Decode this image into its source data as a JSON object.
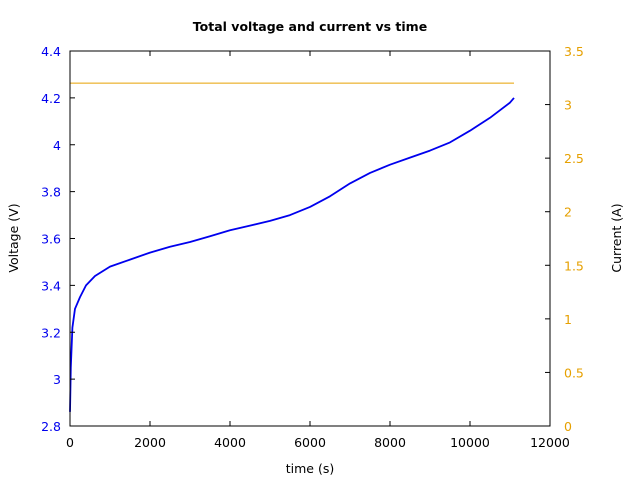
{
  "chart_data": {
    "type": "line",
    "title": "Total voltage and current vs time",
    "xlabel": "time (s)",
    "ylabel": "Voltage (V)",
    "y2label": "Current (A)",
    "xlim": [
      0,
      12000
    ],
    "ylim": [
      2.8,
      4.4
    ],
    "y2lim": [
      0,
      3.5
    ],
    "x_ticks": [
      "0",
      "2000",
      "4000",
      "6000",
      "8000",
      "10000",
      "12000"
    ],
    "y_ticks": [
      "2.8",
      "3",
      "3.2",
      "3.4",
      "3.6",
      "3.8",
      "4",
      "4.2",
      "4.4"
    ],
    "y2_ticks": [
      "0",
      "0.5",
      "1",
      "1.5",
      "2",
      "2.5",
      "3",
      "3.5"
    ],
    "grid": false,
    "legend": null,
    "colors": {
      "voltage": "#0000ee",
      "current": "#e6a000",
      "left_axis_ticks": "#0000ee",
      "right_axis_ticks": "#e6a000"
    },
    "series": [
      {
        "name": "Voltage (V)",
        "axis": "left",
        "x": [
          0,
          20,
          60,
          125,
          250,
          400,
          625,
          1000,
          1500,
          2000,
          2500,
          3000,
          3500,
          4000,
          4500,
          5000,
          5500,
          6000,
          6500,
          7000,
          7500,
          8000,
          8500,
          9000,
          9500,
          10000,
          10500,
          11000,
          11100
        ],
        "values": [
          2.86,
          3.05,
          3.22,
          3.3,
          3.35,
          3.4,
          3.44,
          3.48,
          3.51,
          3.54,
          3.565,
          3.585,
          3.61,
          3.635,
          3.655,
          3.675,
          3.7,
          3.735,
          3.78,
          3.835,
          3.88,
          3.915,
          3.945,
          3.975,
          4.01,
          4.06,
          4.115,
          4.18,
          4.2
        ]
      },
      {
        "name": "Current (A)",
        "axis": "right",
        "x": [
          0,
          11100
        ],
        "values": [
          3.2,
          3.2
        ]
      }
    ]
  }
}
